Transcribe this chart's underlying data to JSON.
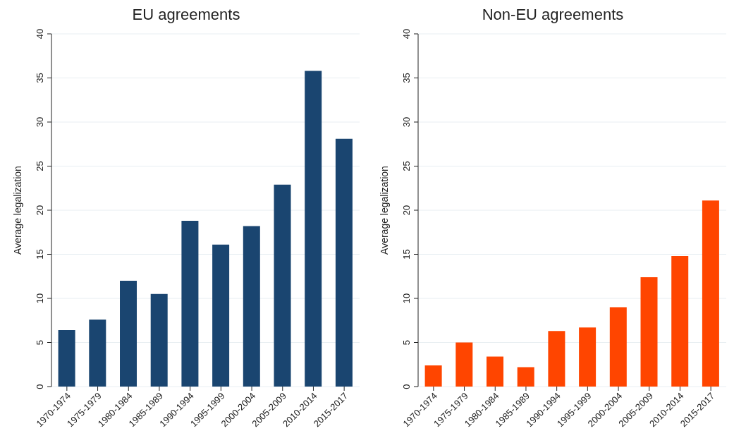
{
  "chart_data": [
    {
      "type": "bar",
      "title": "EU agreements",
      "ylabel": "Average legalization",
      "categories": [
        "1970-1974",
        "1975-1979",
        "1980-1984",
        "1985-1989",
        "1990-1994",
        "1995-1999",
        "2000-2004",
        "2005-2009",
        "2010-2014",
        "2015-2017"
      ],
      "values": [
        6.4,
        7.6,
        12.0,
        10.5,
        18.8,
        16.1,
        18.2,
        22.9,
        35.8,
        28.1
      ],
      "color": "#1a4570",
      "ylim": [
        0,
        40
      ],
      "yticks": [
        0,
        5,
        10,
        15,
        20,
        25,
        30,
        35,
        40
      ],
      "grid": "y"
    },
    {
      "type": "bar",
      "title": "Non-EU agreements",
      "ylabel": "Average legalization",
      "categories": [
        "1970-1974",
        "1975-1979",
        "1980-1984",
        "1985-1989",
        "1990-1994",
        "1995-1999",
        "2000-2004",
        "2005-2009",
        "2010-2014",
        "2015-2017"
      ],
      "values": [
        2.4,
        5.0,
        3.4,
        2.2,
        6.3,
        6.7,
        9.0,
        12.4,
        14.8,
        21.1
      ],
      "color": "#ff4500",
      "ylim": [
        0,
        40
      ],
      "yticks": [
        0,
        5,
        10,
        15,
        20,
        25,
        30,
        35,
        40
      ],
      "grid": "y"
    }
  ]
}
